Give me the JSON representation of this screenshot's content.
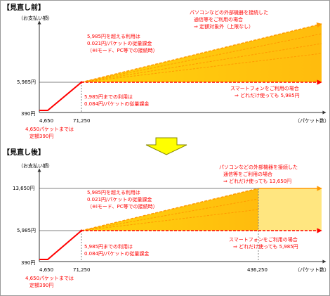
{
  "colors": {
    "red": "#ff0000",
    "orange": "#ff9900",
    "fill_main": "#ffcc00",
    "fill_light": "#ffe680",
    "axis": "#333333",
    "guide": "#808080",
    "arrow_fill": "#ffff00",
    "arrow_stroke": "#888800"
  },
  "chart_data": [
    {
      "type": "line",
      "title": "【見直し前】",
      "ylabel": "（お支払い額）",
      "xlabel": "（パケット数）",
      "x_ticks": [
        "4,650",
        "71,250"
      ],
      "y_ticks": [
        "390円",
        "5,985円"
      ],
      "series": [
        {
          "x": [
            0,
            4650,
            71250
          ],
          "y": [
            390,
            390,
            5985
          ]
        },
        {
          "x": [
            71250,
            600000
          ],
          "y": [
            5985,
            50600
          ]
        },
        {
          "x": [
            71250,
            600000
          ],
          "y": [
            5985,
            5985
          ]
        }
      ],
      "annotations": {
        "pc_title": "パソコンなどの外部機器を接続した",
        "pc_sub": "通信等をご利用の場合",
        "pc_note": "⇒ 定額対象外（上限なし）",
        "over_title": "5,985円を超える利用は",
        "over_rate": "0.021円/パケットの従量課金",
        "over_note": "（※iモード、PC等での接続時）",
        "smart_title": "スマートフォンをご利用の場合",
        "smart_note": "⇒ どれだけ使っても 5,985円",
        "under_title": "5,985円までの利用は",
        "under_rate": "0.084円/パケットの従量課金",
        "flat_a": "4,650パケットまでは",
        "flat_b": "定額390円"
      }
    },
    {
      "type": "line",
      "title": "【見直し後】",
      "ylabel": "（お支払い額）",
      "xlabel": "（パケット数）",
      "x_ticks": [
        "4,650",
        "71,250",
        "436,250"
      ],
      "y_ticks": [
        "390円",
        "5,985円",
        "13,650円"
      ],
      "series": [
        {
          "x": [
            0,
            4650,
            71250
          ],
          "y": [
            390,
            390,
            5985
          ]
        },
        {
          "x": [
            71250,
            436250,
            600000
          ],
          "y": [
            5985,
            13650,
            13650
          ]
        },
        {
          "x": [
            71250,
            600000
          ],
          "y": [
            5985,
            5985
          ]
        }
      ],
      "annotations": {
        "pc_title": "パソコンなどの外部機器を接続した",
        "pc_sub": "通信等をご利用の場合",
        "pc_note": "⇒ どれだけ使っても 13,650円",
        "over_title": "5,985円を超える利用は",
        "over_rate": "0.021円/パケットの従量課金",
        "over_note": "（※iモード、PC等での接続時）",
        "smart_title": "スマートフォンをご利用の場合",
        "smart_note": "⇒ どれだけ使っても 5,985円",
        "under_title": "5,985円までの利用は",
        "under_rate": "0.084円/パケットの従量課金",
        "flat_a": "4,650パケットまでは",
        "flat_b": "定額390円"
      }
    }
  ]
}
